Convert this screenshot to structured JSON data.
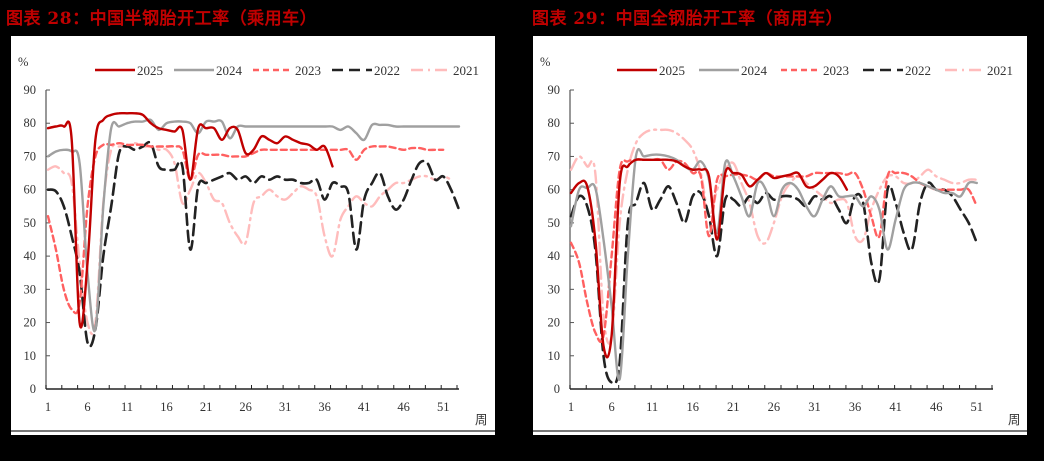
{
  "charts": [
    {
      "title": "图表 28：中国半钢胎开工率（乘用车）",
      "unit": "%",
      "x_unit": "周"
    },
    {
      "title": "图表 29：中国全钢胎开工率（商用车）",
      "unit": "%",
      "x_unit": "周"
    }
  ],
  "chart_data": [
    {
      "type": "line",
      "title": "图表 28：中国半钢胎开工率（乘用车）",
      "xlabel": "周",
      "ylabel": "%",
      "ylim": [
        0,
        90
      ],
      "yticks": [
        0,
        10,
        20,
        30,
        40,
        50,
        60,
        70,
        80,
        90
      ],
      "xlim": [
        1,
        53
      ],
      "xticks": [
        1,
        6,
        11,
        16,
        21,
        26,
        31,
        36,
        41,
        46,
        51
      ],
      "grid": false,
      "legend_position": "top",
      "series": [
        {
          "name": "2025",
          "color": "#c00000",
          "style": "solid",
          "values": [
            78.5,
            79,
            79,
            75,
            20,
            38,
            75,
            81,
            82.5,
            83,
            83,
            83,
            82.5,
            80,
            78.5,
            78,
            77.5,
            78,
            63,
            78.5,
            78.5,
            78.5,
            75,
            78.5,
            78,
            71,
            72,
            76,
            75,
            74,
            76,
            75,
            74,
            73.5,
            72,
            73,
            67
          ]
        },
        {
          "name": "2024",
          "color": "#a0a0a0",
          "style": "solid",
          "values": [
            70,
            71.5,
            72,
            71.5,
            68,
            35,
            18,
            55,
            78.5,
            79,
            80,
            80.5,
            80.5,
            81,
            78,
            80,
            80.5,
            80.5,
            80,
            77,
            80.5,
            80.5,
            80.5,
            75.5,
            79,
            79,
            79,
            79,
            79,
            79,
            79,
            79,
            79,
            79,
            79,
            79,
            79,
            78,
            79,
            77,
            75,
            79.5,
            79.5,
            79.5,
            79,
            79,
            79,
            79,
            79,
            79,
            79,
            79,
            79
          ]
        },
        {
          "name": "2023",
          "color": "#ff6060",
          "style": "dash",
          "values": [
            52,
            42,
            30,
            24,
            26,
            55,
            70,
            73.5,
            73.5,
            74,
            73.5,
            73.5,
            73.5,
            73,
            73,
            73,
            73,
            72,
            63,
            70.5,
            70.5,
            70.5,
            70.5,
            70,
            70,
            70,
            71,
            72,
            72,
            72,
            72,
            72,
            72,
            72,
            72,
            72,
            72,
            72,
            72,
            69,
            72,
            73,
            73,
            73,
            72.5,
            72,
            72.5,
            72.5,
            72,
            72,
            72
          ]
        },
        {
          "name": "2022",
          "color": "#222222",
          "style": "longdash",
          "values": [
            60,
            59.5,
            55,
            46,
            35,
            14,
            18,
            40,
            55,
            71,
            73,
            72,
            73,
            74,
            67,
            66,
            66,
            67,
            42,
            61,
            62,
            63,
            64,
            65,
            63,
            64,
            62,
            64,
            63,
            64,
            63,
            63,
            62,
            62,
            63,
            57,
            62,
            61,
            59,
            42,
            57,
            62,
            65,
            58,
            54,
            57,
            63,
            68,
            68,
            63,
            64,
            60,
            54
          ]
        },
        {
          "name": "2021",
          "color": "#ffbcbc",
          "style": "dashdot",
          "values": [
            66,
            67,
            65,
            62,
            38,
            20,
            20,
            56,
            72,
            73,
            73,
            74,
            73,
            73,
            72,
            72,
            68,
            56,
            60,
            65,
            62,
            57,
            56,
            50,
            46,
            44,
            56,
            58,
            60,
            58,
            57,
            59,
            61,
            60,
            58,
            46,
            40,
            51,
            55,
            58,
            56,
            55,
            58,
            60,
            62,
            62,
            63,
            64,
            64,
            63,
            64,
            63
          ]
        }
      ]
    },
    {
      "type": "line",
      "title": "图表 29：中国全钢胎开工率（商用车）",
      "xlabel": "周",
      "ylabel": "%",
      "ylim": [
        0,
        90
      ],
      "yticks": [
        0,
        10,
        20,
        30,
        40,
        50,
        60,
        70,
        80,
        90
      ],
      "xlim": [
        1,
        53
      ],
      "xticks": [
        1,
        6,
        11,
        16,
        21,
        26,
        31,
        36,
        41,
        46,
        51
      ],
      "grid": false,
      "legend_position": "top",
      "series": [
        {
          "name": "2025",
          "color": "#c00000",
          "style": "solid",
          "values": [
            59,
            62,
            61,
            45,
            13,
            16,
            62,
            67,
            69,
            69,
            69,
            69,
            69,
            68.5,
            67,
            66,
            66,
            64,
            45,
            65,
            65,
            64.5,
            61,
            63,
            65,
            63.5,
            64,
            64.5,
            65,
            61,
            61,
            63,
            65,
            64,
            60
          ]
        },
        {
          "name": "2024",
          "color": "#a0a0a0",
          "style": "solid",
          "values": [
            49,
            60,
            60.5,
            60.5,
            45,
            25,
            3,
            40,
            70,
            70,
            70.5,
            70.5,
            70,
            69,
            67,
            66,
            68.5,
            63,
            47,
            68,
            64,
            58,
            52,
            62,
            60,
            52,
            60,
            62,
            60,
            55,
            52,
            57,
            61,
            58,
            58,
            58,
            55,
            58,
            54,
            42,
            51,
            60,
            62,
            62,
            61,
            60,
            59,
            59,
            58,
            62,
            62
          ]
        },
        {
          "name": "2023",
          "color": "#ff6060",
          "style": "dash",
          "values": [
            44,
            38,
            26,
            17,
            16,
            40,
            66,
            68.5,
            69,
            69,
            69,
            69,
            66,
            68.5,
            68,
            65,
            64,
            46,
            63,
            64,
            64.5,
            64.5,
            64,
            63,
            65,
            64,
            64,
            64,
            64,
            64,
            65,
            65,
            65,
            65,
            64.5,
            65,
            60,
            52,
            46,
            64,
            65,
            65,
            64,
            62,
            61,
            60,
            60,
            60,
            60,
            60,
            55
          ]
        },
        {
          "name": "2022",
          "color": "#222222",
          "style": "longdash",
          "values": [
            52,
            58,
            55,
            42,
            10,
            2,
            8,
            50,
            56,
            62,
            54,
            57,
            61,
            56,
            50,
            58,
            59,
            52,
            40,
            57,
            57,
            55,
            58,
            56,
            59,
            57,
            58,
            58,
            57,
            55,
            58,
            57,
            58,
            54,
            50,
            58,
            56,
            38,
            33,
            60,
            56,
            47,
            42,
            56,
            62,
            60,
            60,
            58,
            54,
            50,
            44
          ]
        },
        {
          "name": "2021",
          "color": "#ffbcbc",
          "style": "dashdot",
          "values": [
            66,
            70,
            67,
            65,
            22,
            16,
            50,
            66,
            74,
            77,
            78,
            78,
            78,
            77,
            75,
            72,
            65,
            52,
            60,
            66,
            68,
            62,
            56,
            46,
            44,
            50,
            58,
            62,
            64,
            62,
            60,
            58,
            56,
            57,
            56,
            46,
            45,
            54,
            60,
            64,
            64,
            62,
            62,
            64,
            66,
            64,
            63,
            62,
            62,
            63,
            63
          ]
        }
      ]
    }
  ],
  "legend": [
    {
      "label": "2025"
    },
    {
      "label": "2024"
    },
    {
      "label": "2023"
    },
    {
      "label": "2022"
    },
    {
      "label": "2021"
    }
  ]
}
